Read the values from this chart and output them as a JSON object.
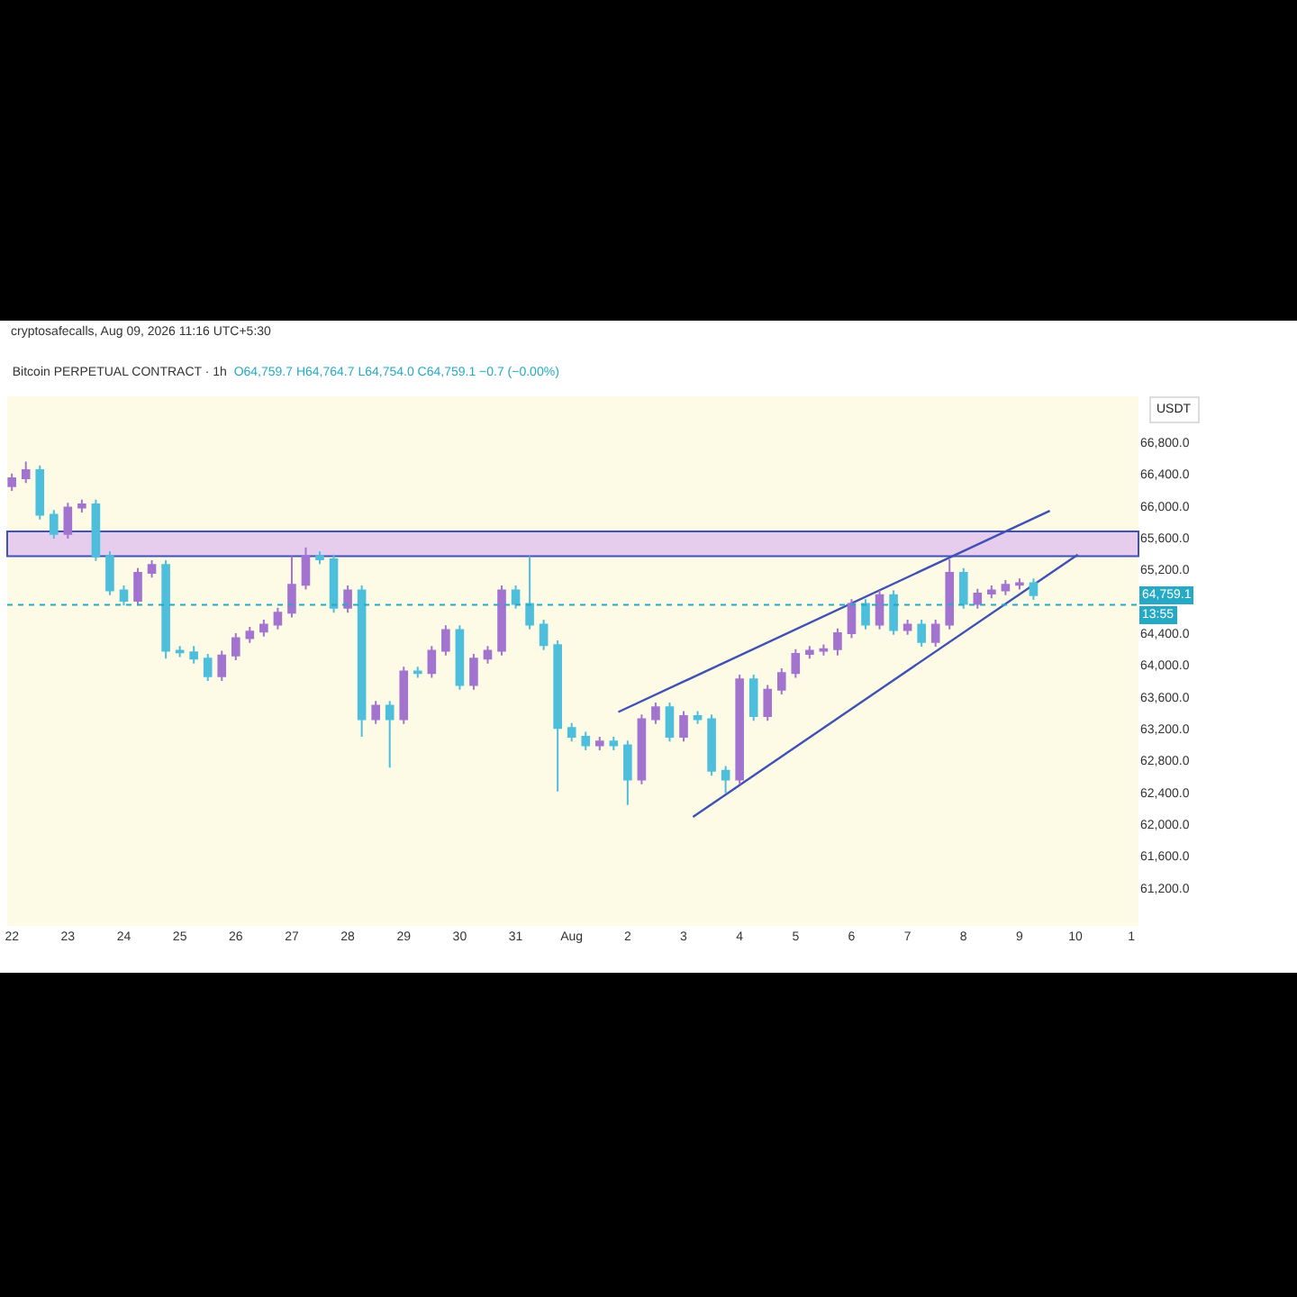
{
  "chart_data": {
    "type": "candlestick",
    "title": "Bitcoin PERPETUAL CONTRACT · 1h",
    "subtitle": "O64,759.7 H64,764.7 L64,754.0 C64,759.1 −0.7 (−0.00%)",
    "ylabel": "USDT",
    "annotations": [
      "cryptosafecalls, Aug 09, 2026 11:16 UTC+5:30",
      {
        "text": "13:55",
        "x": "2026-08-11T03:00",
        "y": 64759.1
      }
    ],
    "colors": [
      "#a274cf",
      "#a274cf",
      "#4dbfdc",
      "#4dbfdc",
      "#a274cf",
      "#a274cf",
      "#4dbfdc",
      "#4dbfdc",
      "#4dbfdc",
      "#a274cf",
      "#a274cf",
      "#4dbfdc",
      "#4dbfdc",
      "#4dbfdc",
      "#4dbfdc",
      "#a274cf",
      "#a274cf",
      "#a274cf",
      "#a274cf",
      "#a274cf",
      "#a274cf",
      "#a274cf",
      "#4dbfdc",
      "#4dbfdc",
      "#a274cf",
      "#4dbfdc",
      "#a274cf",
      "#4dbfdc",
      "#a274cf",
      "#4dbfdc",
      "#a274cf",
      "#a274cf",
      "#4dbfdc",
      "#a274cf",
      "#a274cf",
      "#a274cf",
      "#4dbfdc",
      "#4dbfdc",
      "#4dbfdc",
      "#4dbfdc",
      "#4dbfdc",
      "#4dbfdc",
      "#a274cf",
      "#4dbfdc",
      "#4dbfdc",
      "#a274cf",
      "#a274cf",
      "#4dbfdc",
      "#a274cf",
      "#4dbfdc",
      "#4dbfdc",
      "#4dbfdc",
      "#a274cf",
      "#4dbfdc",
      "#a274cf",
      "#a274cf",
      "#a274cf",
      "#a274cf",
      "#a274cf",
      "#a274cf",
      "#a274cf",
      "#4dbfdc",
      "#a274cf",
      "#4dbfdc",
      "#a274cf",
      "#4dbfdc",
      "#a274cf",
      "#a274cf",
      "#4dbfdc",
      "#a274cf",
      "#a274cf",
      "#a274cf",
      "#a274cf",
      "#4dbfdc"
    ],
    "x": [
      "2026-07-22T00:00",
      "2026-07-22T06:00",
      "2026-07-22T12:00",
      "2026-07-22T18:00",
      "2026-07-23T00:00",
      "2026-07-23T06:00",
      "2026-07-23T12:00",
      "2026-07-23T18:00",
      "2026-07-24T00:00",
      "2026-07-24T06:00",
      "2026-07-24T12:00",
      "2026-07-24T18:00",
      "2026-07-25T00:00",
      "2026-07-25T06:00",
      "2026-07-25T12:00",
      "2026-07-25T18:00",
      "2026-07-26T00:00",
      "2026-07-26T06:00",
      "2026-07-26T12:00",
      "2026-07-26T18:00",
      "2026-07-27T00:00",
      "2026-07-27T06:00",
      "2026-07-27T12:00",
      "2026-07-27T18:00",
      "2026-07-28T00:00",
      "2026-07-28T06:00",
      "2026-07-28T12:00",
      "2026-07-28T18:00",
      "2026-07-29T00:00",
      "2026-07-29T06:00",
      "2026-07-29T12:00",
      "2026-07-29T18:00",
      "2026-07-30T00:00",
      "2026-07-30T06:00",
      "2026-07-30T12:00",
      "2026-07-30T18:00",
      "2026-07-31T00:00",
      "2026-07-31T06:00",
      "2026-07-31T12:00",
      "2026-07-31T18:00",
      "2026-08-01T00:00",
      "2026-08-01T06:00",
      "2026-08-01T12:00",
      "2026-08-01T18:00",
      "2026-08-02T00:00",
      "2026-08-02T06:00",
      "2026-08-02T12:00",
      "2026-08-02T18:00",
      "2026-08-03T00:00",
      "2026-08-03T06:00",
      "2026-08-03T12:00",
      "2026-08-03T18:00",
      "2026-08-04T00:00",
      "2026-08-04T06:00",
      "2026-08-04T12:00",
      "2026-08-04T18:00",
      "2026-08-05T00:00",
      "2026-08-05T06:00",
      "2026-08-05T12:00",
      "2026-08-05T18:00",
      "2026-08-06T00:00",
      "2026-08-06T06:00",
      "2026-08-06T12:00",
      "2026-08-06T18:00",
      "2026-08-07T00:00",
      "2026-08-07T06:00",
      "2026-08-07T12:00",
      "2026-08-07T18:00",
      "2026-08-08T00:00",
      "2026-08-08T06:00",
      "2026-08-08T12:00",
      "2026-08-08T18:00",
      "2026-08-09T00:00",
      "2026-08-09T06:00"
    ],
    "ohlc": [
      [
        66250,
        66410,
        66190,
        66350
      ],
      [
        66350,
        66560,
        66290,
        66450
      ],
      [
        66450,
        66510,
        65830,
        65890
      ],
      [
        65890,
        65950,
        65590,
        65650
      ],
      [
        65650,
        66040,
        65590,
        65980
      ],
      [
        65980,
        66080,
        65920,
        66020
      ],
      [
        66020,
        66080,
        65310,
        65370
      ],
      [
        65370,
        65430,
        64880,
        64940
      ],
      [
        64940,
        65000,
        64750,
        64810
      ],
      [
        64810,
        65220,
        64750,
        65160
      ],
      [
        65160,
        65320,
        65100,
        65260
      ],
      [
        65260,
        65320,
        64080,
        64180
      ],
      [
        64180,
        64240,
        64100,
        64160
      ],
      [
        64160,
        64240,
        64020,
        64080
      ],
      [
        64080,
        64140,
        63800,
        63860
      ],
      [
        63860,
        64180,
        63800,
        64120
      ],
      [
        64120,
        64400,
        64060,
        64340
      ],
      [
        64340,
        64480,
        64280,
        64420
      ],
      [
        64420,
        64570,
        64360,
        64510
      ],
      [
        64510,
        64720,
        64450,
        64660
      ],
      [
        64660,
        65370,
        64600,
        65010
      ],
      [
        65010,
        65480,
        64950,
        65370
      ],
      [
        65370,
        65430,
        65270,
        65330
      ],
      [
        65330,
        65390,
        64660,
        64720
      ],
      [
        64720,
        65000,
        64660,
        64940
      ],
      [
        64940,
        65000,
        63100,
        63320
      ],
      [
        63320,
        63550,
        63260,
        63490
      ],
      [
        63490,
        63550,
        62710,
        63320
      ],
      [
        63320,
        63980,
        63260,
        63920
      ],
      [
        63920,
        63980,
        63840,
        63900
      ],
      [
        63900,
        64240,
        63840,
        64180
      ],
      [
        64180,
        64500,
        64120,
        64440
      ],
      [
        64440,
        64500,
        63690,
        63750
      ],
      [
        63750,
        64140,
        63690,
        64080
      ],
      [
        64080,
        64240,
        64020,
        64180
      ],
      [
        64180,
        65000,
        64120,
        64940
      ],
      [
        64940,
        65000,
        64710,
        64770
      ],
      [
        64770,
        65370,
        64450,
        64510
      ],
      [
        64510,
        64570,
        64190,
        64250
      ],
      [
        64250,
        64310,
        62410,
        63210
      ],
      [
        63210,
        63270,
        63040,
        63100
      ],
      [
        63100,
        63160,
        62930,
        62990
      ],
      [
        62990,
        63100,
        62930,
        63040
      ],
      [
        63040,
        63100,
        62930,
        62990
      ],
      [
        62990,
        63050,
        62240,
        62560
      ],
      [
        62560,
        63380,
        62500,
        63320
      ],
      [
        63320,
        63530,
        63260,
        63470
      ],
      [
        63470,
        63530,
        63040,
        63100
      ],
      [
        63100,
        63420,
        63040,
        63360
      ],
      [
        63360,
        63420,
        63260,
        63320
      ],
      [
        63320,
        63380,
        62610,
        62670
      ],
      [
        62670,
        62730,
        62390,
        62560
      ],
      [
        62560,
        63880,
        62500,
        63820
      ],
      [
        63820,
        63880,
        63300,
        63360
      ],
      [
        63360,
        63750,
        63300,
        63690
      ],
      [
        63690,
        63960,
        63630,
        63900
      ],
      [
        63900,
        64200,
        63840,
        64140
      ],
      [
        64140,
        64240,
        64080,
        64180
      ],
      [
        64180,
        64260,
        64120,
        64200
      ],
      [
        64200,
        64460,
        64120,
        64400
      ],
      [
        64400,
        64830,
        64340,
        64770
      ],
      [
        64770,
        64830,
        64450,
        64510
      ],
      [
        64510,
        64940,
        64450,
        64880
      ],
      [
        64880,
        64940,
        64380,
        64440
      ],
      [
        64440,
        64570,
        64380,
        64510
      ],
      [
        64510,
        64570,
        64230,
        64290
      ],
      [
        64290,
        64570,
        64230,
        64510
      ],
      [
        64510,
        65330,
        64450,
        65160
      ],
      [
        65160,
        65220,
        64710,
        64770
      ],
      [
        64770,
        64960,
        64710,
        64900
      ],
      [
        64900,
        65000,
        64840,
        64940
      ],
      [
        64940,
        65070,
        64880,
        65010
      ],
      [
        65010,
        65090,
        64950,
        65030
      ],
      [
        65030,
        65090,
        64820,
        64880
      ]
    ],
    "series": [
      {
        "type": "line",
        "color": "#3f51b5",
        "x": [
          "2026-08-01T20:00",
          "2026-08-09T13:00"
        ],
        "values": [
          63410,
          65940
        ]
      },
      {
        "type": "line",
        "color": "#3f51b5",
        "x": [
          "2026-08-03T04:00",
          "2026-08-10T01:00"
        ],
        "values": [
          62090,
          65390
        ]
      }
    ],
    "bands": [
      {
        "axis": "y",
        "from": 65370,
        "to": 65680,
        "color": "#e6cdee"
      }
    ],
    "ref_lines": [
      {
        "axis": "y",
        "value": 64759.1,
        "label": "64,759.1",
        "color": "#26a9c4",
        "line_style": "dotted"
      }
    ],
    "xlim": [
      "2026-07-21T22:00",
      "2026-08-11T03:00"
    ],
    "xticks": [
      {
        "value": "2026-07-22",
        "label": "22"
      },
      {
        "value": "2026-07-23",
        "label": "23"
      },
      {
        "value": "2026-07-24",
        "label": "24"
      },
      {
        "value": "2026-07-25",
        "label": "25"
      },
      {
        "value": "2026-07-26",
        "label": "26"
      },
      {
        "value": "2026-07-27",
        "label": "27"
      },
      {
        "value": "2026-07-28",
        "label": "28"
      },
      {
        "value": "2026-07-29",
        "label": "29"
      },
      {
        "value": "2026-07-30",
        "label": "30"
      },
      {
        "value": "2026-07-31",
        "label": "31"
      },
      {
        "value": "2026-08-01",
        "label": "Aug"
      },
      {
        "value": "2026-08-02",
        "label": "2"
      },
      {
        "value": "2026-08-03",
        "label": "3"
      },
      {
        "value": "2026-08-04",
        "label": "4"
      },
      {
        "value": "2026-08-05",
        "label": "5"
      },
      {
        "value": "2026-08-06",
        "label": "6"
      },
      {
        "value": "2026-08-07",
        "label": "7"
      },
      {
        "value": "2026-08-08",
        "label": "8"
      },
      {
        "value": "2026-08-09",
        "label": "9"
      },
      {
        "value": "2026-08-10",
        "label": "10"
      },
      {
        "value": "2026-08-11",
        "label": "1"
      }
    ],
    "ylim": [
      60720,
      67380
    ],
    "yticks": [
      {
        "value": 61200,
        "label": "61,200.0"
      },
      {
        "value": 61600,
        "label": "61,600.0"
      },
      {
        "value": 62000,
        "label": "62,000.0"
      },
      {
        "value": 62400,
        "label": "62,400.0"
      },
      {
        "value": 62800,
        "label": "62,800.0"
      },
      {
        "value": 63200,
        "label": "63,200.0"
      },
      {
        "value": 63600,
        "label": "63,600.0"
      },
      {
        "value": 64000,
        "label": "64,000.0"
      },
      {
        "value": 64400,
        "label": "64,400.0"
      },
      {
        "value": 65200,
        "label": "65,200.0"
      },
      {
        "value": 65600,
        "label": "65,600.0"
      },
      {
        "value": 66000,
        "label": "66,000.0"
      },
      {
        "value": 66400,
        "label": "66,400.0"
      },
      {
        "value": 66800,
        "label": "66,800.0"
      }
    ],
    "grid": false
  }
}
